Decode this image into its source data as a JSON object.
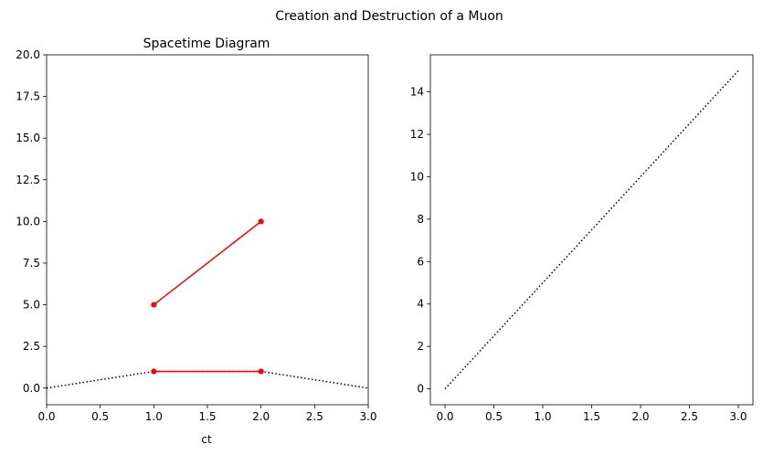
{
  "figure": {
    "suptitle": "Creation and Destruction of a Muon"
  },
  "chart_data": [
    {
      "type": "line",
      "title": "Spacetime Diagram",
      "xlabel": "ct",
      "ylabel": "",
      "xlim": [
        0,
        3
      ],
      "ylim": [
        -1.0,
        20.0
      ],
      "xticks": [
        0.0,
        0.5,
        1.0,
        1.5,
        2.0,
        2.5,
        3.0
      ],
      "yticks": [
        0.0,
        2.5,
        5.0,
        7.5,
        10.0,
        12.5,
        15.0,
        17.5,
        20.0
      ],
      "tick_decimals": {
        "x": 1,
        "y": 1
      },
      "grid": false,
      "series": [
        {
          "style": "dotted",
          "color": "#000000",
          "marker": false,
          "points": [
            [
              0,
              0
            ],
            [
              1,
              1
            ],
            [
              2,
              1
            ],
            [
              3,
              0
            ]
          ]
        },
        {
          "style": "solid",
          "color": "#ff0000",
          "marker": true,
          "points": [
            [
              1,
              1
            ],
            [
              2,
              1
            ]
          ]
        },
        {
          "style": "solid",
          "color": "#ff0000",
          "marker": true,
          "points": [
            [
              1,
              5
            ],
            [
              2,
              10
            ]
          ]
        }
      ]
    },
    {
      "type": "line",
      "title": "",
      "xlabel": "",
      "ylabel": "",
      "xlim": [
        -0.15,
        3.15
      ],
      "ylim": [
        -0.75,
        15.75
      ],
      "xticks": [
        0.0,
        0.5,
        1.0,
        1.5,
        2.0,
        2.5,
        3.0
      ],
      "yticks": [
        0,
        2,
        4,
        6,
        8,
        10,
        12,
        14
      ],
      "tick_decimals": {
        "x": 1,
        "y": 0
      },
      "grid": false,
      "series": [
        {
          "style": "dotted",
          "color": "#000000",
          "marker": false,
          "points": [
            [
              0,
              0
            ],
            [
              3,
              15
            ]
          ]
        }
      ]
    }
  ]
}
